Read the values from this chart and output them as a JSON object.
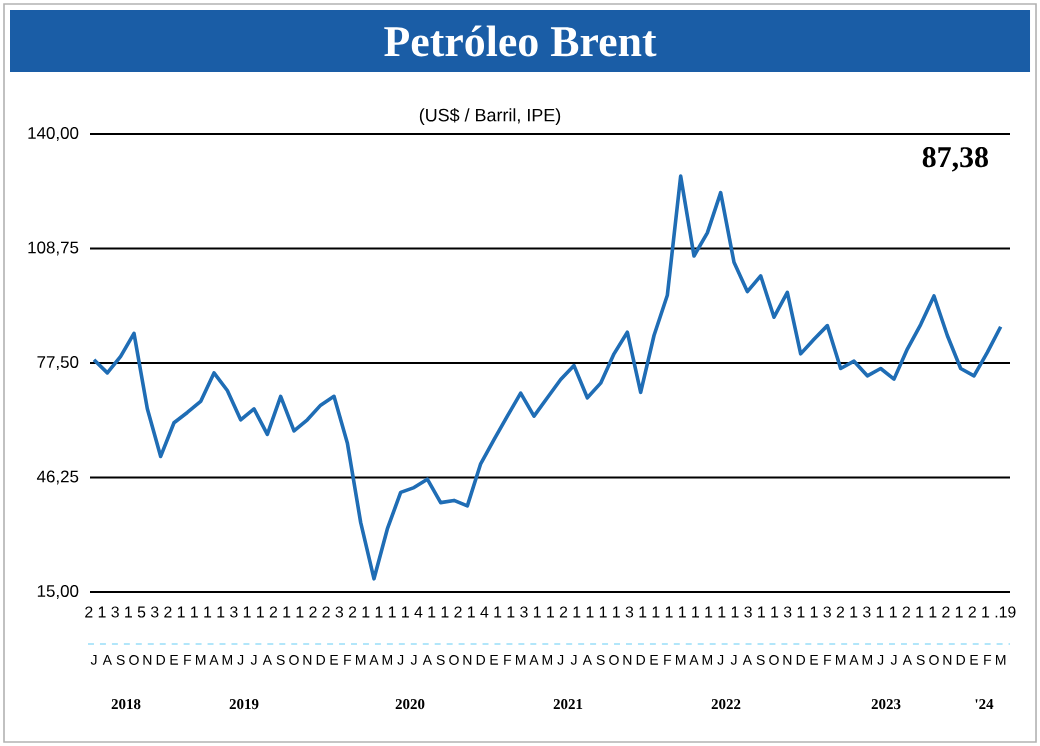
{
  "chart_data": {
    "type": "line",
    "title": "Petróleo Brent",
    "subtitle": "(US$ / Barril, IPE)",
    "annotations": [
      "87,38",
      "2 1 3 1 5 3 2 1 1 1 1 3 1 1 2 1 1 2 2 3 2 1 1 1 1 4 1 1 2 1 4 1 1 3 1 1 2 1 1 1 1 3 1 1 1 1 1 1 1 1 3 1 1 3 1 1 3 2 1 3 1 1 2 1 1 2 1 2 1 .19",
      "2018",
      "2019",
      "2020",
      "2021",
      "2022",
      "2023",
      "'24"
    ],
    "categories": [
      "J",
      "A",
      "S",
      "O",
      "N",
      "D",
      "E",
      "F",
      "M",
      "A",
      "M",
      "J",
      "J",
      "A",
      "S",
      "O",
      "N",
      "D",
      "E",
      "F",
      "M",
      "A",
      "M",
      "J",
      "J",
      "A",
      "S",
      "O",
      "N",
      "D",
      "E",
      "F",
      "M",
      "A",
      "M",
      "J",
      "J",
      "A",
      "S",
      "O",
      "N",
      "D",
      "E",
      "F",
      "M",
      "A",
      "M",
      "J",
      "J",
      "A",
      "S",
      "O",
      "N",
      "D",
      "E",
      "F",
      "M",
      "A",
      "M",
      "J",
      "J",
      "A",
      "S",
      "O",
      "N",
      "D",
      "E",
      "F",
      "M"
    ],
    "values": [
      78.4,
      74.8,
      79.3,
      85.6,
      65,
      52,
      61.2,
      64,
      67,
      74.8,
      70,
      62,
      65,
      58,
      68.4,
      59,
      62,
      66,
      68.4,
      55.7,
      34,
      18.6,
      32.2,
      42.2,
      43.5,
      45.8,
      39.4,
      40,
      38.5,
      50,
      56.6,
      63,
      69.3,
      63,
      68,
      73,
      76.8,
      68,
      72,
      80,
      85.9,
      69.5,
      85,
      96,
      128.5,
      106.7,
      113,
      124,
      105,
      97,
      101.3,
      90,
      96.8,
      80,
      84,
      87.7,
      76,
      78,
      74,
      76,
      73.1,
      81.3,
      88,
      95.8,
      85,
      76,
      74,
      80.4,
      87.4
    ],
    "color": "#1f6db5",
    "ylim": [
      15,
      140
    ],
    "yticks": [
      {
        "value": 15,
        "label": "15,00"
      },
      {
        "value": 46.25,
        "label": "46,25"
      },
      {
        "value": 77.5,
        "label": "77,50"
      },
      {
        "value": 108.75,
        "label": "108,75"
      },
      {
        "value": 140,
        "label": "140,00"
      }
    ],
    "grid": "y"
  }
}
